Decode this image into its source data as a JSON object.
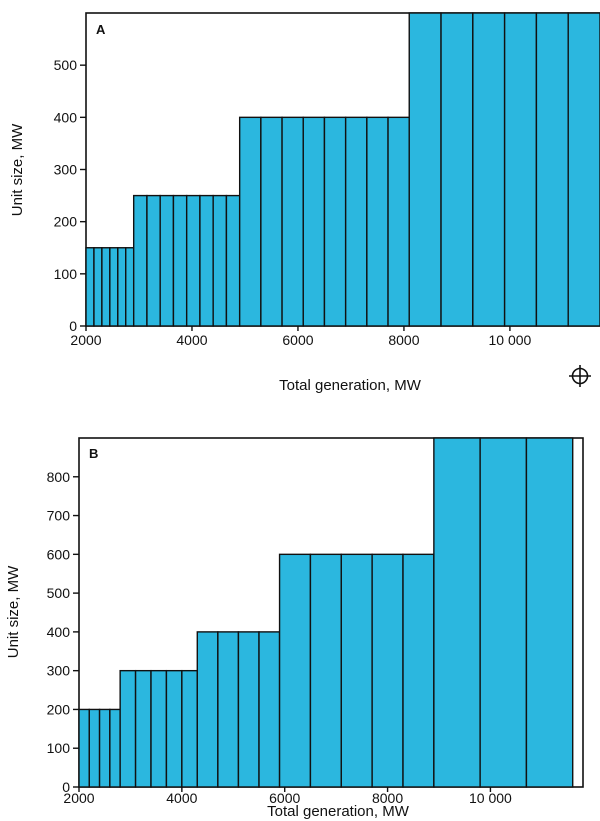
{
  "colors": {
    "fill": "#2bb7df",
    "stroke": "#111111"
  },
  "icons": {
    "registration_mark": "registration-target-icon"
  },
  "chart_data": [
    {
      "type": "bar",
      "panel_label": "A",
      "xlabel": "Total generation, MW",
      "ylabel": "Unit size, MW",
      "xlim": [
        2000,
        11700
      ],
      "ylim": [
        0,
        600
      ],
      "xticks": [
        2000,
        4000,
        6000,
        8000,
        10000
      ],
      "xtick_labels": [
        "2000",
        "4000",
        "6000",
        "8000",
        "10 000"
      ],
      "yticks": [
        0,
        100,
        200,
        300,
        400,
        500
      ],
      "ytick_labels": [
        "0",
        "100",
        "200",
        "300",
        "400",
        "500"
      ],
      "steps": [
        {
          "start": 2000,
          "unit": 150,
          "count": 6
        },
        {
          "start": 2900,
          "unit": 250,
          "count": 8
        },
        {
          "start": 4900,
          "unit": 400,
          "count": 8
        },
        {
          "start": 8100,
          "unit": 600,
          "count": 6
        }
      ]
    },
    {
      "type": "bar",
      "panel_label": "B",
      "xlabel": "Total generation, MW",
      "ylabel": "Unit size, MW",
      "xlim": [
        2000,
        11800
      ],
      "ylim": [
        0,
        900
      ],
      "xticks": [
        2000,
        4000,
        6000,
        8000,
        10000
      ],
      "xtick_labels": [
        "2000",
        "4000",
        "6000",
        "8000",
        "10 000"
      ],
      "yticks": [
        0,
        100,
        200,
        300,
        400,
        500,
        600,
        700,
        800
      ],
      "ytick_labels": [
        "0",
        "100",
        "200",
        "300",
        "400",
        "500",
        "600",
        "700",
        "800"
      ],
      "steps": [
        {
          "start": 2000,
          "unit": 200,
          "count": 4
        },
        {
          "start": 2800,
          "unit": 300,
          "count": 5
        },
        {
          "start": 4300,
          "unit": 400,
          "count": 4
        },
        {
          "start": 5900,
          "unit": 600,
          "count": 5
        },
        {
          "start": 8900,
          "unit": 900,
          "count": 3
        }
      ]
    }
  ]
}
